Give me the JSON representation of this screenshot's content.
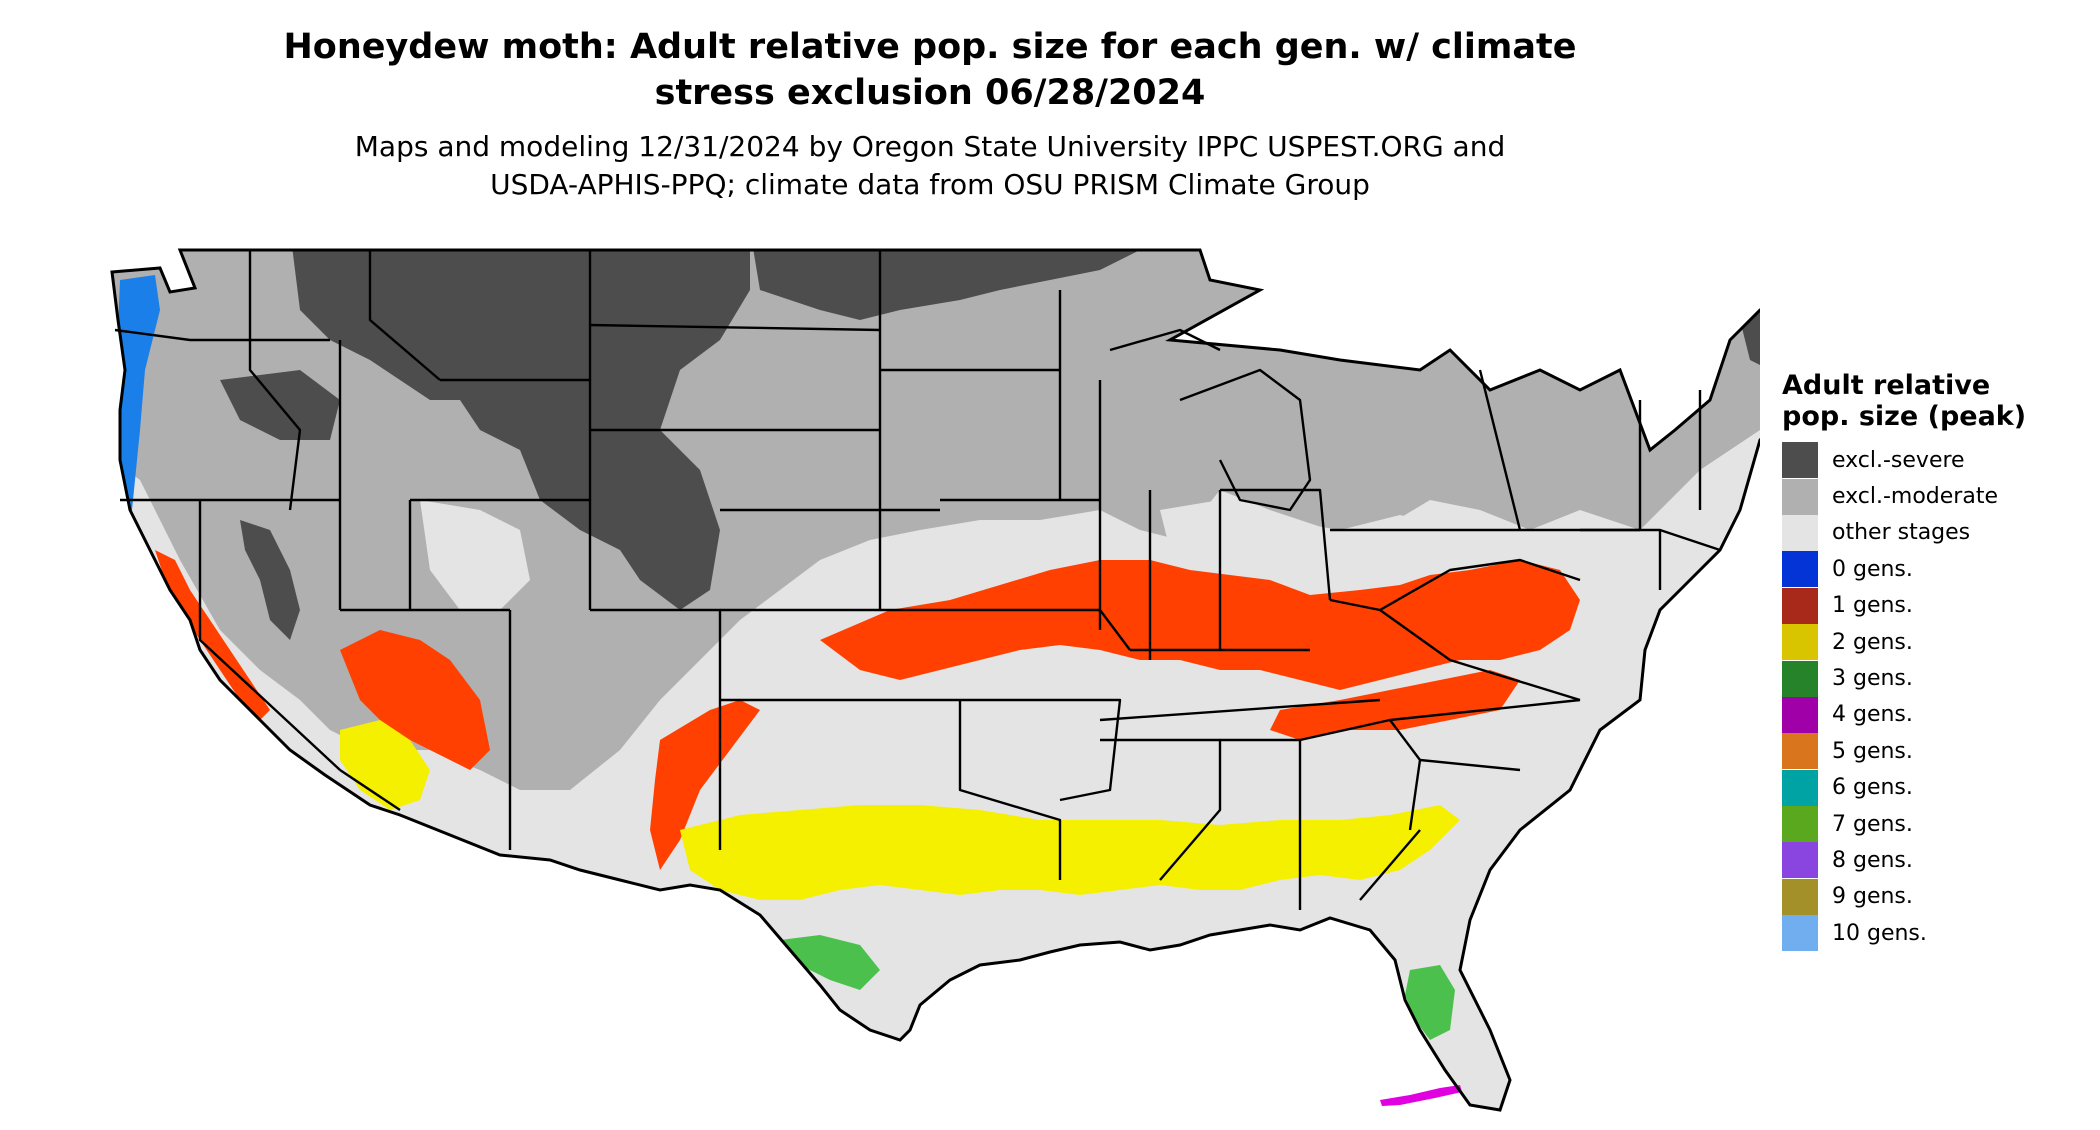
{
  "title": {
    "line1": "Honeydew moth: Adult relative pop. size for each gen. w/ climate",
    "line2": "stress exclusion 06/28/2024"
  },
  "subtitle": {
    "line1": "Maps and modeling 12/31/2024 by Oregon State University IPPC USPEST.ORG and",
    "line2": "USDA-APHIS-PPQ; climate data from OSU PRISM Climate Group"
  },
  "legend": {
    "title": "Adult relative pop. size (peak)",
    "items": [
      {
        "label": "excl.-severe",
        "color": "#4d4d4d"
      },
      {
        "label": "excl.-moderate",
        "color": "#b0b0b0"
      },
      {
        "label": "other stages",
        "color": "#e4e4e4"
      },
      {
        "label": "0 gens.",
        "color": "#0433d6"
      },
      {
        "label": "1 gens.",
        "color": "#a8281a"
      },
      {
        "label": "2 gens.",
        "color": "#d9c400"
      },
      {
        "label": "3 gens.",
        "color": "#27832a"
      },
      {
        "label": "4 gens.",
        "color": "#a000a8"
      },
      {
        "label": "5 gens.",
        "color": "#d9751c"
      },
      {
        "label": "6 gens.",
        "color": "#00a3a3"
      },
      {
        "label": "7 gens.",
        "color": "#5aa81e"
      },
      {
        "label": "8 gens.",
        "color": "#8a44e0"
      },
      {
        "label": "9 gens.",
        "color": "#a39028"
      },
      {
        "label": "10 gens.",
        "color": "#70aef0"
      }
    ]
  },
  "map_colors": {
    "ocean": "#ffffff",
    "severe": "#4d4d4d",
    "moderate": "#b0b0b0",
    "other": "#e4e4e4",
    "blue": "#1a7fe8",
    "orange_red": "#ff4000",
    "yellow": "#f5f000",
    "green": "#4cc04c",
    "magenta": "#e000e0",
    "border": "#000000"
  }
}
